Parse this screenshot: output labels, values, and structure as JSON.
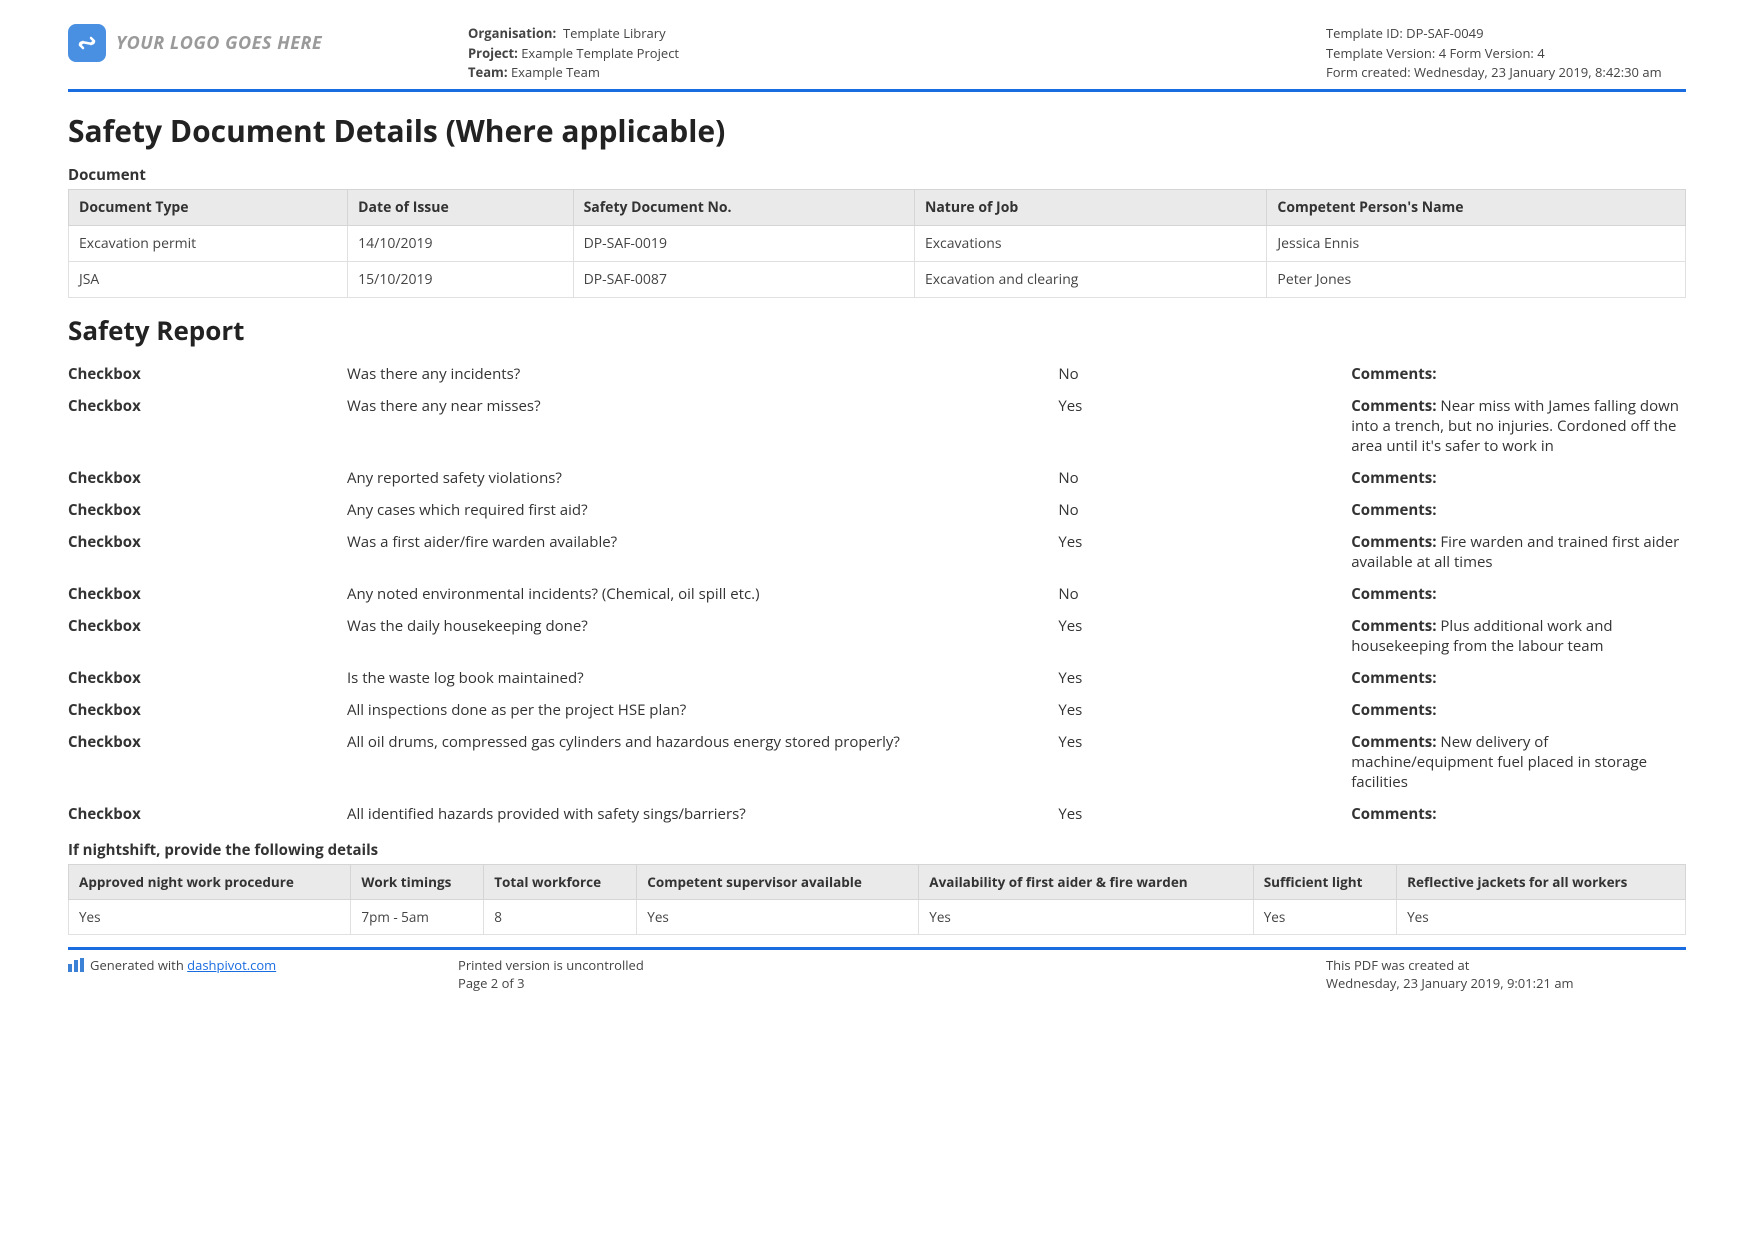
{
  "header": {
    "logo_placeholder": "YOUR LOGO GOES HERE",
    "org_label": "Organisation:",
    "org_value": "Template Library",
    "project_label": "Project:",
    "project_value": "Example Template Project",
    "team_label": "Team:",
    "team_value": "Example Team",
    "template_id_label": "Template ID:",
    "template_id_value": "DP-SAF-0049",
    "template_version_label": "Template Version:",
    "template_version_value": "4",
    "form_version_label": "Form Version:",
    "form_version_value": "4",
    "form_created_label": "Form created:",
    "form_created_value": "Wednesday, 23 January 2019, 8:42:30 am"
  },
  "section1": {
    "title": "Safety Document Details (Where applicable)",
    "subhead": "Document",
    "columns": [
      "Document Type",
      "Date of Issue",
      "Safety Document No.",
      "Nature of Job",
      "Competent Person's Name"
    ],
    "rows": [
      [
        "Excavation permit",
        "14/10/2019",
        "DP-SAF-0019",
        "Excavations",
        "Jessica Ennis"
      ],
      [
        "JSA",
        "15/10/2019",
        "DP-SAF-0087",
        "Excavation and clearing",
        "Peter Jones"
      ]
    ]
  },
  "section2": {
    "title": "Safety Report",
    "checkbox_label": "Checkbox",
    "comments_label": "Comments:",
    "items": [
      {
        "q": "Was there any incidents?",
        "a": "No",
        "c": ""
      },
      {
        "q": "Was there any near misses?",
        "a": "Yes",
        "c": "Near miss with James falling down into a trench, but no injuries. Cordoned off the area until it's safer to work in"
      },
      {
        "q": "Any reported safety violations?",
        "a": "No",
        "c": ""
      },
      {
        "q": "Any cases which required first aid?",
        "a": "No",
        "c": ""
      },
      {
        "q": "Was a first aider/fire warden available?",
        "a": "Yes",
        "c": "Fire warden and trained first aider available at all times"
      },
      {
        "q": "Any noted environmental incidents? (Chemical, oil spill etc.)",
        "a": "No",
        "c": ""
      },
      {
        "q": "Was the daily housekeeping done?",
        "a": "Yes",
        "c": "Plus additional work and housekeeping from the labour team"
      },
      {
        "q": "Is the waste log book maintained?",
        "a": "Yes",
        "c": ""
      },
      {
        "q": "All inspections done as per the project HSE plan?",
        "a": "Yes",
        "c": ""
      },
      {
        "q": "All oil drums, compressed gas cylinders and hazardous energy stored properly?",
        "a": "Yes",
        "c": "New delivery of machine/equipment fuel placed in storage facilities"
      },
      {
        "q": "All identified hazards provided with safety sings/barriers?",
        "a": "Yes",
        "c": ""
      }
    ]
  },
  "nightshift": {
    "subhead": "If nightshift, provide the following details",
    "columns": [
      "Approved night work procedure",
      "Work timings",
      "Total workforce",
      "Competent supervisor available",
      "Availability of first aider & fire warden",
      "Sufficient light",
      "Reflective jackets for all workers"
    ],
    "rows": [
      [
        "Yes",
        "7pm - 5am",
        "8",
        "Yes",
        "Yes",
        "Yes",
        "Yes"
      ]
    ]
  },
  "footer": {
    "generated_prefix": "Generated with ",
    "generated_link": "dashpivot.com",
    "printed_line": "Printed version is uncontrolled",
    "page_line": "Page 2 of 3",
    "created_label": "This PDF was created at",
    "created_value": "Wednesday, 23 January 2019, 9:01:21 am"
  }
}
